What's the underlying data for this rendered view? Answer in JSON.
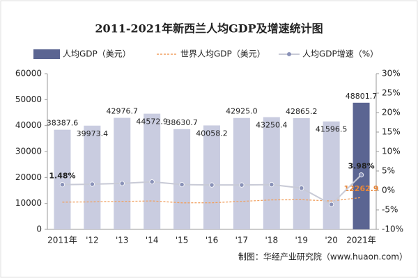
{
  "chart_data": {
    "type": "bar_line",
    "title": "2011-2021年新西兰人均GDP及增速统计图",
    "source": "制图：华经产业研究院（www.huaon.com）",
    "categories": [
      "2011年",
      "'12",
      "'13",
      "'14",
      "'15",
      "'16",
      "'17",
      "'18",
      "'19",
      "'20",
      "2021年"
    ],
    "series": [
      {
        "name": "人均GDP（美元）",
        "kind": "bar",
        "color": "#c9cce0",
        "colors": [
          "#c9cce0",
          "#c9cce0",
          "#c9cce0",
          "#c9cce0",
          "#c9cce0",
          "#c9cce0",
          "#c9cce0",
          "#c9cce0",
          "#c9cce0",
          "#c9cce0",
          "#5b6592"
        ],
        "values": [
          38387.6,
          39973.4,
          42976.7,
          44572.9,
          38630.7,
          40058.2,
          42925.0,
          43250.4,
          42865.2,
          41596.5,
          48801.7
        ],
        "value_labels": [
          "38387.6",
          "39973.4",
          "42976.7",
          "44572.9",
          "38630.7",
          "40058.2",
          "42925.0",
          "43250.4",
          "42865.2",
          "41596.5",
          "48801.7"
        ]
      },
      {
        "name": "世界人均GDP（美元）",
        "kind": "dashed_line",
        "color": "#f0a060",
        "values": [
          10480,
          10590,
          10760,
          10950,
          10230,
          10250,
          10780,
          11360,
          11430,
          10930,
          12262.9
        ],
        "value_labels": [
          null,
          null,
          null,
          null,
          null,
          null,
          null,
          null,
          null,
          null,
          "12262.9"
        ]
      },
      {
        "name": "人均GDP增速（%）",
        "kind": "line",
        "axis": "y2",
        "color": "#c8cad6",
        "marker_color": "#8a92b8",
        "values": [
          1.48,
          1.6,
          1.8,
          2.2,
          1.5,
          1.4,
          1.4,
          1.5,
          0.6,
          -3.6,
          3.98
        ],
        "value_labels": [
          "1.48%",
          null,
          null,
          null,
          null,
          null,
          null,
          null,
          null,
          null,
          "3.98%"
        ]
      }
    ],
    "ylim": [
      0,
      60000
    ],
    "yticks": [
      0,
      10000,
      20000,
      30000,
      40000,
      50000,
      60000
    ],
    "y2lim": [
      -10,
      30
    ],
    "y2ticks": [
      {
        "value": -10,
        "label": "-10%"
      },
      {
        "value": -5,
        "label": "-5%"
      },
      {
        "value": 0,
        "label": "0%"
      },
      {
        "value": 5,
        "label": "5%"
      },
      {
        "value": 10,
        "label": "10%"
      },
      {
        "value": 15,
        "label": "15%"
      },
      {
        "value": 20,
        "label": "20%"
      },
      {
        "value": 25,
        "label": "25%"
      },
      {
        "value": 30,
        "label": "30%"
      }
    ],
    "grid": false
  }
}
